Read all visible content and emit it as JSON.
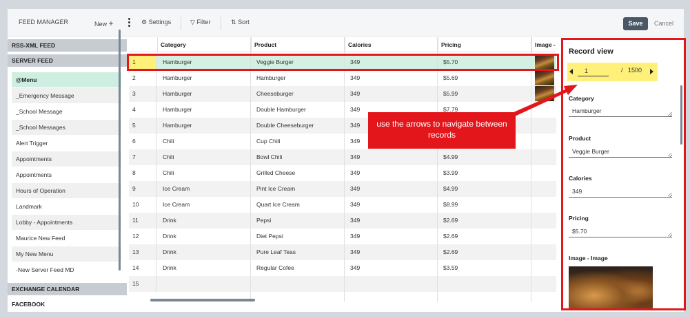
{
  "toolbar": {
    "title": "FEED MANAGER",
    "new_label": "New",
    "settings_label": "Settings",
    "filter_label": "Filter",
    "sort_label": "Sort",
    "save_label": "Save",
    "cancel_label": "Cancel"
  },
  "sidebar": {
    "sections": [
      "RSS-XML FEED",
      "SERVER FEED",
      "EXCHANGE CALENDAR",
      "FACEBOOK"
    ],
    "items": [
      "@Menu",
      "_Emergency Message",
      "_School Message",
      "_School Messages",
      "Alert Trigger",
      "Appointments",
      "Appointments",
      "Hours of Operation",
      "Landmark",
      "Lobby - Appointments",
      "Maurice New Feed",
      "My New Menu",
      "-New Server Feed MD"
    ]
  },
  "grid": {
    "columns": [
      "Category",
      "Product",
      "Calories",
      "Pricing",
      "Image -"
    ],
    "rows": [
      {
        "n": "1",
        "category": "Hamburger",
        "product": "Veggie Burger",
        "calories": "349",
        "pricing": "$5.70"
      },
      {
        "n": "2",
        "category": "Hamburger",
        "product": "Hamburger",
        "calories": "349",
        "pricing": "$5.69"
      },
      {
        "n": "3",
        "category": "Hamburger",
        "product": "Cheeseburger",
        "calories": "349",
        "pricing": "$5.99"
      },
      {
        "n": "4",
        "category": "Hamburger",
        "product": "Double Hamburger",
        "calories": "349",
        "pricing": "$7.79"
      },
      {
        "n": "5",
        "category": "Hamburger",
        "product": "Double Cheeseburger",
        "calories": "349",
        "pricing": ""
      },
      {
        "n": "6",
        "category": "Chili",
        "product": "Cup Chili",
        "calories": "349",
        "pricing": ""
      },
      {
        "n": "7",
        "category": "Chili",
        "product": "Bowl Chili",
        "calories": "349",
        "pricing": "$4.99"
      },
      {
        "n": "8",
        "category": "Chili",
        "product": "Grilled Cheese",
        "calories": "349",
        "pricing": "$3.99"
      },
      {
        "n": "9",
        "category": "Ice Cream",
        "product": "Pint Ice Cream",
        "calories": "349",
        "pricing": "$4.99"
      },
      {
        "n": "10",
        "category": "Ice Cream",
        "product": "Quart Ice Cream",
        "calories": "349",
        "pricing": "$8.99"
      },
      {
        "n": "11",
        "category": "Drink",
        "product": "Pepsi",
        "calories": "349",
        "pricing": "$2.69"
      },
      {
        "n": "12",
        "category": "Drink",
        "product": "Diet Pepsi",
        "calories": "349",
        "pricing": "$2.69"
      },
      {
        "n": "13",
        "category": "Drink",
        "product": "Pure Leaf Teas",
        "calories": "349",
        "pricing": "$2.69"
      },
      {
        "n": "14",
        "category": "Drink",
        "product": "Regular Cofee",
        "calories": "349",
        "pricing": "$3.59"
      },
      {
        "n": "15",
        "category": "",
        "product": "",
        "calories": "",
        "pricing": ""
      }
    ]
  },
  "record_view": {
    "title": "Record view",
    "current": "1",
    "separator": "/",
    "total": "1500",
    "fields": [
      {
        "label": "Category",
        "value": "Hamburger"
      },
      {
        "label": "Product",
        "value": "Veggie Burger"
      },
      {
        "label": "Calories",
        "value": "349"
      },
      {
        "label": "Pricing",
        "value": "$5.70"
      }
    ],
    "image_label": "Image - Image"
  },
  "callout": {
    "text": "use the arrows to navigate between records"
  },
  "colors": {
    "highlight": "#e3161c",
    "selected_row": "#d4f0e3",
    "nav_yellow": "#fff07a",
    "save_button": "#4a5866"
  }
}
